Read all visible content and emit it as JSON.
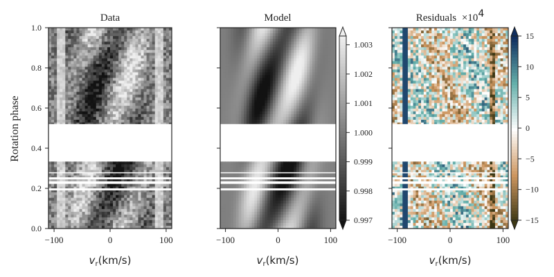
{
  "chart_data": [
    {
      "type": "heatmap",
      "title": "Data",
      "xlabel": "v_r(km/s)",
      "ylabel": "Rotation phase",
      "xlim": [
        -110,
        110
      ],
      "ylim": [
        0.0,
        1.0
      ],
      "xticks": [
        "−100",
        "0",
        "100"
      ],
      "yticks": [
        "0.0",
        "0.2",
        "0.4",
        "0.6",
        "0.8",
        "1.0"
      ],
      "colormap": "gray",
      "value_range": [
        0.997,
        1.0033
      ],
      "phase_gaps": [
        [
          0.19,
          0.2
        ],
        [
          0.225,
          0.235
        ],
        [
          0.245,
          0.255
        ],
        [
          0.275,
          0.28
        ],
        [
          0.34,
          0.52
        ]
      ]
    },
    {
      "type": "heatmap",
      "title": "Model",
      "xlabel": "v_r(km/s)",
      "xlim": [
        -110,
        110
      ],
      "ylim": [
        0.0,
        1.0
      ],
      "xticks": [
        "−100",
        "0",
        "100"
      ],
      "colormap": "gray",
      "value_range": [
        0.997,
        1.0033
      ],
      "colorbar_ticks": [
        "0.997",
        "0.998",
        "0.999",
        "1.000",
        "1.001",
        "1.002",
        "1.003"
      ],
      "colorbar_values": [
        0.997,
        0.998,
        0.999,
        1.0,
        1.001,
        1.002,
        1.003
      ]
    },
    {
      "type": "heatmap",
      "title": "Residuals",
      "title_suffix": "×10",
      "title_exp": "4",
      "xlabel": "v_r(km/s)",
      "xlim": [
        -110,
        110
      ],
      "ylim": [
        0.0,
        1.0
      ],
      "xticks": [
        "−100",
        "0",
        "100"
      ],
      "colormap": "brown-white-teal",
      "value_range": [
        -15,
        15
      ],
      "colorbar_ticks": [
        "−15",
        "−10",
        "−5",
        "0",
        "5",
        "10",
        "15"
      ],
      "colorbar_values": [
        -15,
        -10,
        -5,
        0,
        5,
        10,
        15
      ]
    }
  ]
}
